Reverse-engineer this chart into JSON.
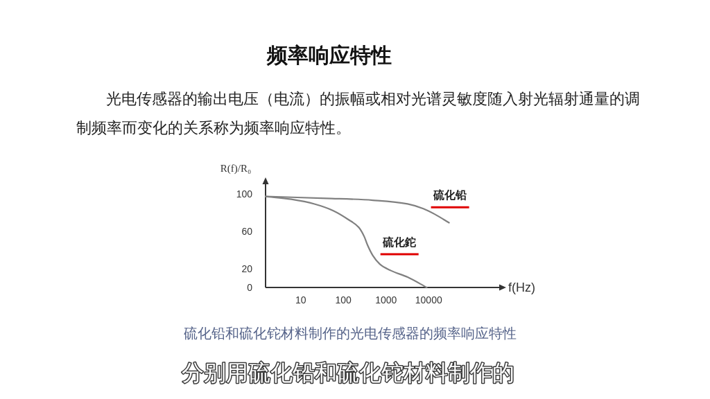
{
  "chart_data": {
    "type": "line",
    "title": "频率响应特性",
    "subtitle": "光电传感器的输出电压（电流）的振幅或相对光谱灵敏度随入射光辐射通量的调制频率而变化的关系称为频率响应特性。",
    "xlabel": "f(Hz)",
    "ylabel": "R(f)/R₀",
    "log": "x",
    "xlim": [
      1.5,
      450000
    ],
    "xticks": [
      10,
      100,
      1000,
      10000
    ],
    "ylim": [
      0,
      110
    ],
    "yticks": [
      0,
      20,
      60,
      100
    ],
    "line_style": "solid",
    "series": [
      {
        "name": "硫化铅",
        "color": "#808080",
        "x": [
          1.5,
          40,
          490,
          3200,
          7500,
          14000,
          30000
        ],
        "values": [
          97,
          95,
          93,
          89,
          84,
          78,
          69
        ]
      },
      {
        "name": "硫化鉈",
        "color": "#808080",
        "x": [
          1.5,
          6,
          21,
          57,
          135,
          230,
          310,
          370,
          490,
          710,
          1300,
          3200,
          9000
        ],
        "values": [
          97,
          94,
          89,
          82,
          72,
          64,
          54,
          45,
          34,
          25,
          18,
          11,
          0
        ]
      }
    ],
    "annotations": [
      "硫化铅和硫化铊材料制作的光电传感器的频率响应特性",
      "分别用硫化铅和硫化铊材料制作的"
    ]
  }
}
